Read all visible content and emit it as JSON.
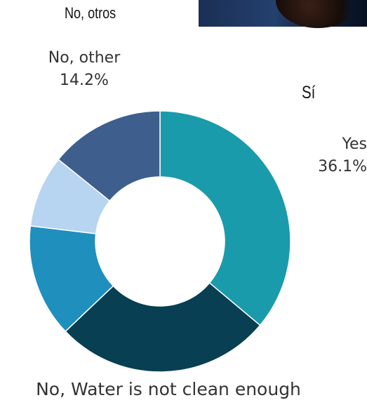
{
  "top_labels": {
    "no_otros": "No, otros",
    "si": "Sí"
  },
  "chart_data": {
    "type": "pie",
    "subtype": "donut",
    "title": "",
    "series": [
      {
        "labels": [
          "Yes",
          "No, Water is not clean enough",
          "",
          "",
          "No, other"
        ],
        "values": [
          36.1,
          26.8,
          14.0,
          8.9,
          14.2
        ],
        "colors": [
          "#1a9bab",
          "#083f52",
          "#1f8fbe",
          "#b7d4f0",
          "#3e5f8d"
        ],
        "data_labels": [
          "36.1%",
          "",
          "",
          "",
          "14.2%"
        ]
      }
    ]
  },
  "callouts": {
    "other": {
      "name": "No, other",
      "value": "14.2%"
    },
    "yes": {
      "name": "Yes",
      "value": "36.1%"
    },
    "water": {
      "name": "No, Water is not clean enough"
    }
  }
}
